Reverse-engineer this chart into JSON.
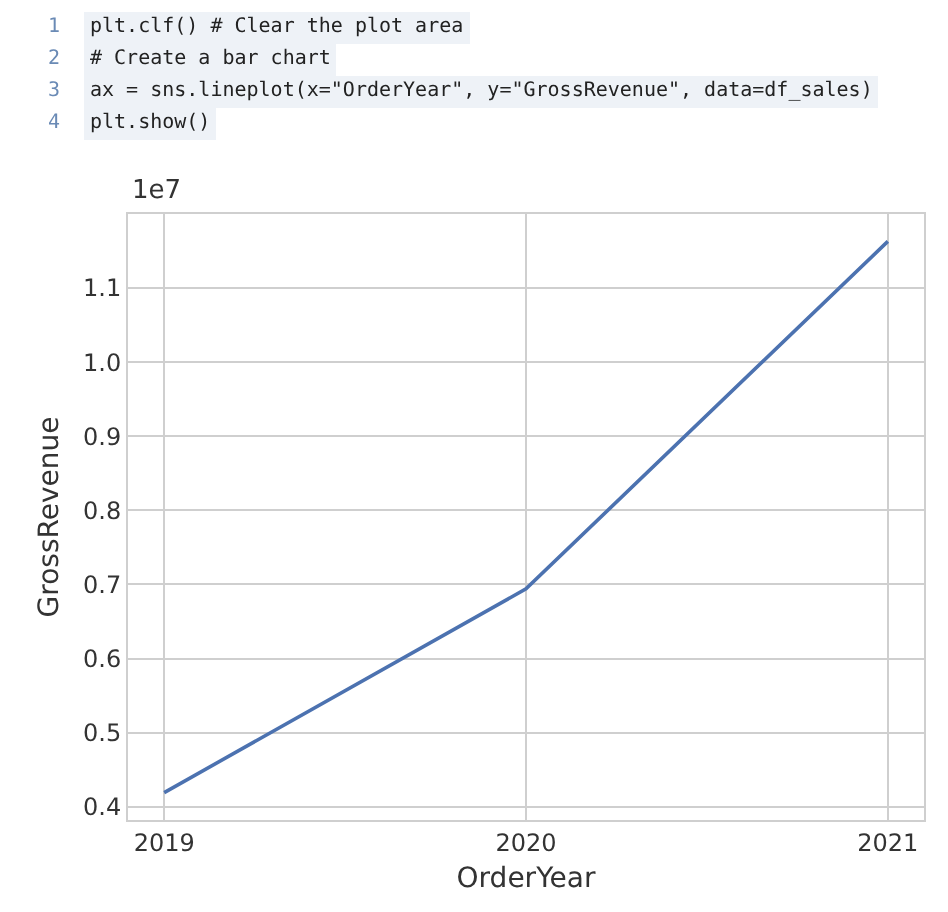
{
  "chart_data": {
    "type": "line",
    "xlabel": "OrderYear",
    "ylabel": "GrossRevenue",
    "annotations": [
      "1",
      "plt.clf() # Clear the plot area",
      "2",
      "# Create a bar chart",
      "3",
      "ax = sns.lineplot(x=\"OrderYear\", y=\"GrossRevenue\", data=df_sales)",
      "4",
      "plt.show()",
      "1e7"
    ],
    "x": [
      2019,
      2020,
      2021
    ],
    "series": [
      {
        "color": "#4c72b0",
        "values": [
          0.419,
          0.694,
          1.163
        ]
      }
    ],
    "xlim": [
      2018.9,
      2021.1
    ],
    "xticks": [
      2019,
      2020,
      2021
    ],
    "ylim": [
      0.382,
      1.2
    ],
    "yticks": [
      0.4,
      0.5,
      0.6,
      0.7,
      0.8,
      0.9,
      {
        "value": 1,
        "label": "1.0"
      },
      1.1
    ],
    "grid": true,
    "marker": "none",
    "line_style": "solid"
  }
}
